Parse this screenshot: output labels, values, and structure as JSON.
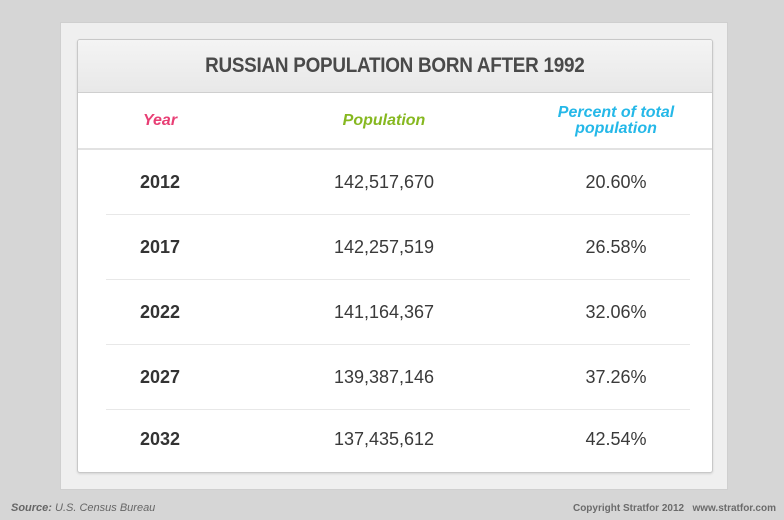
{
  "chart_data": {
    "type": "table",
    "title": "RUSSIAN POPULATION BORN AFTER 1992",
    "columns": [
      "Year",
      "Population",
      "Percent of total population"
    ],
    "column_colors": [
      "#e83e74",
      "#86b820",
      "#25b8e8"
    ],
    "rows": [
      [
        "2012",
        "142,517,670",
        "20.60%"
      ],
      [
        "2017",
        "142,257,519",
        "26.58%"
      ],
      [
        "2022",
        "141,164,367",
        "32.06%"
      ],
      [
        "2027",
        "139,387,146",
        "37.26%"
      ],
      [
        "2032",
        "137,435,612",
        "42.54%"
      ]
    ]
  },
  "footer": {
    "source_label": "Source:",
    "source_text": "U.S. Census Bureau",
    "copyright": "Copyright Stratfor 2012",
    "website": "www.stratfor.com"
  }
}
